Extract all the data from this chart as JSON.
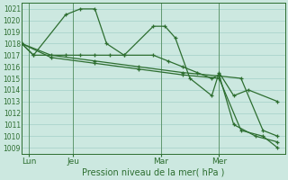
{
  "background_color": "#cce8e0",
  "grid_color": "#aad4cc",
  "line_color": "#2d6e30",
  "xlabel": "Pression niveau de la mer( hPa )",
  "ylim": [
    1008.5,
    1021.5
  ],
  "yticks": [
    1009,
    1010,
    1011,
    1012,
    1013,
    1014,
    1015,
    1016,
    1017,
    1018,
    1019,
    1020,
    1021
  ],
  "xtick_labels": [
    "Lun",
    "Jeu",
    "Mar",
    "Mer"
  ],
  "xtick_positions": [
    0.5,
    3.5,
    9.5,
    13.5
  ],
  "xlim": [
    0,
    18
  ],
  "vlines": [
    0.5,
    3.5,
    9.5,
    13.5
  ],
  "series": [
    {
      "x": [
        0.0,
        0.8,
        3.0,
        4.0,
        5.0,
        5.8,
        7.0,
        9.0,
        9.8,
        10.5,
        11.5,
        13.0,
        13.5,
        14.5,
        15.5,
        17.5
      ],
      "y": [
        1018.0,
        1017.0,
        1020.5,
        1021.0,
        1021.0,
        1018.0,
        1017.0,
        1019.5,
        1019.5,
        1018.5,
        1015.0,
        1013.5,
        1015.5,
        1013.5,
        1014.0,
        1013.0
      ]
    },
    {
      "x": [
        0.0,
        0.8,
        3.0,
        4.0,
        5.0,
        6.0,
        7.0,
        9.0,
        10.0,
        11.0,
        12.0,
        13.0,
        13.5,
        14.5,
        16.0,
        17.5
      ],
      "y": [
        1018.0,
        1017.0,
        1017.0,
        1017.0,
        1017.0,
        1017.0,
        1017.0,
        1017.0,
        1016.5,
        1016.0,
        1015.5,
        1015.0,
        1015.3,
        1011.0,
        1010.0,
        1009.5
      ]
    },
    {
      "x": [
        0.0,
        2.0,
        5.0,
        8.0,
        11.0,
        13.5,
        15.0,
        16.5,
        17.5
      ],
      "y": [
        1018.0,
        1017.0,
        1016.5,
        1016.0,
        1015.5,
        1015.2,
        1015.0,
        1010.5,
        1010.0
      ]
    },
    {
      "x": [
        0.0,
        2.0,
        5.0,
        8.0,
        11.0,
        13.5,
        15.0,
        16.5,
        17.5
      ],
      "y": [
        1018.0,
        1016.8,
        1016.3,
        1015.8,
        1015.3,
        1015.0,
        1010.5,
        1010.0,
        1009.0
      ]
    }
  ],
  "ytick_fontsize": 5.5,
  "xtick_fontsize": 6.5,
  "xlabel_fontsize": 7.0,
  "linewidth": 0.9,
  "markersize": 3.5,
  "marker": "+"
}
